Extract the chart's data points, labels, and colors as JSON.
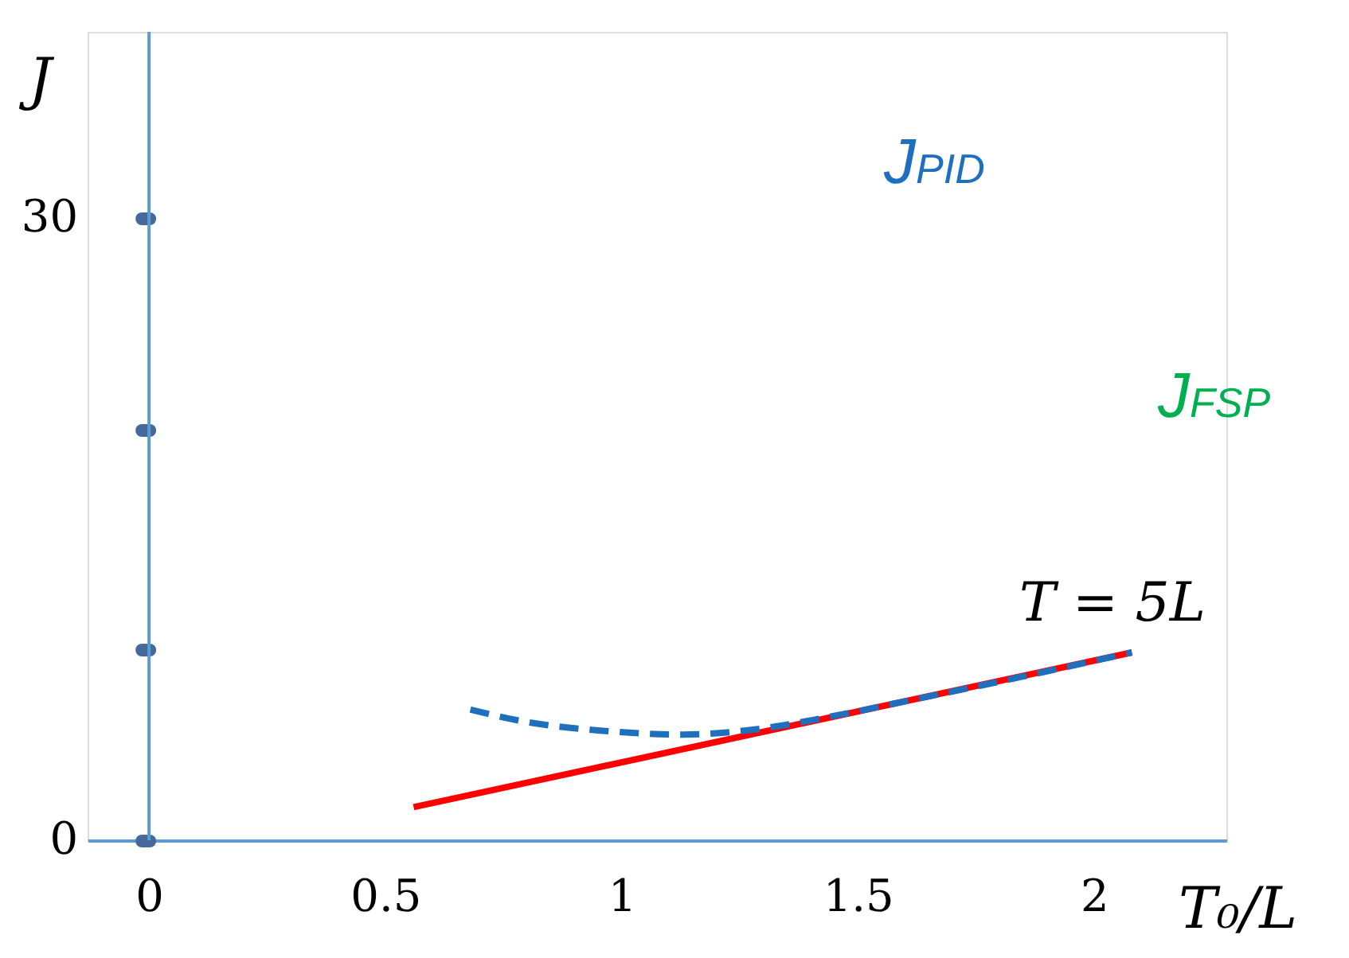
{
  "chart_data": {
    "type": "line",
    "xlabel": "T₀/L",
    "ylabel": "J",
    "xlim": [
      -0.13,
      2.28
    ],
    "ylim": [
      0,
      39
    ],
    "xticks": [
      0,
      0.5,
      1,
      1.5,
      2
    ],
    "yticks": [
      0,
      {
        "value": 9.2,
        "label": null
      },
      {
        "value": 19.8,
        "label": null
      },
      30
    ],
    "series": [
      {
        "color": "#ff0000",
        "line_style": "solid",
        "x": [
          0.56,
          2.08
        ],
        "values": [
          1.6,
          9.06
        ]
      },
      {
        "color": "#1f6fbf",
        "line_style": "dashed",
        "x": [
          0.68,
          0.8,
          0.95,
          1.13,
          1.3,
          1.45,
          1.6,
          1.85,
          2.08
        ],
        "values": [
          6.3,
          5.7,
          5.3,
          5.1,
          5.4,
          6.0,
          6.7,
          7.9,
          9.06
        ]
      }
    ],
    "annotations": [
      "J$_{PID}$",
      "J$_{FSP}$",
      "T = 5L"
    ],
    "ref_lines": [
      {
        "axis": "x",
        "value": 0,
        "color": "#5b9bd5"
      }
    ],
    "grid": false
  }
}
